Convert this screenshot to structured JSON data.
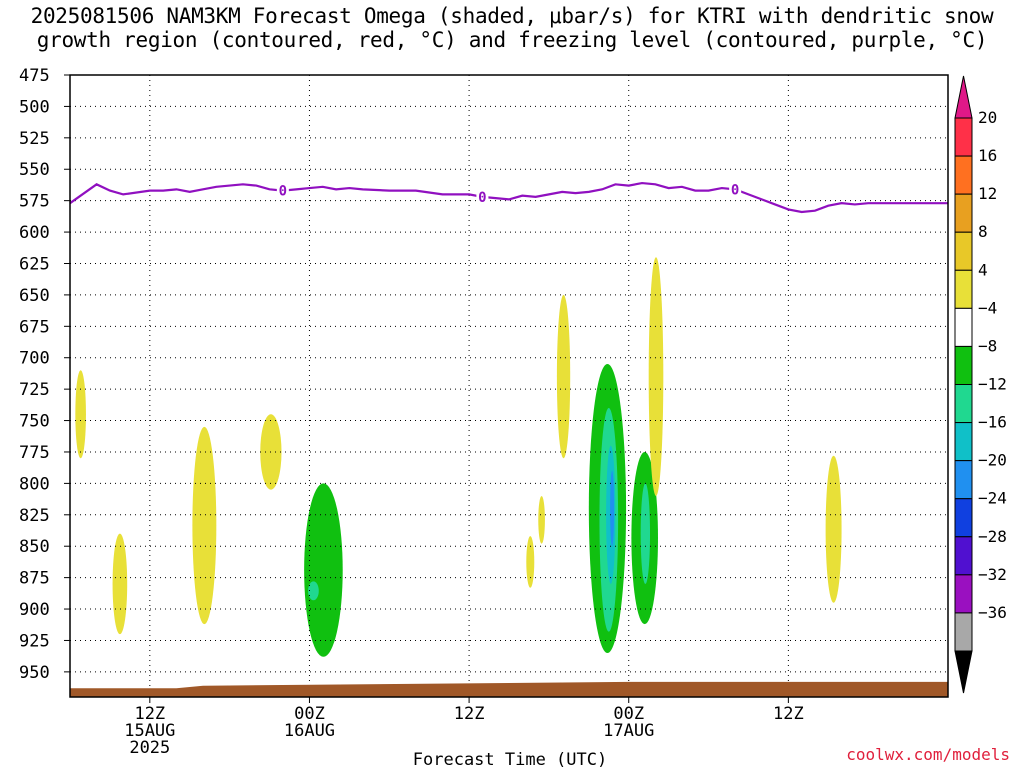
{
  "title": {
    "line1": "2025081506 NAM3KM Forecast Omega (shaded, μbar/s) for KTRI with dendritic snow",
    "line2": "growth region (contoured, red, °C) and freezing level (contoured, purple, °C)"
  },
  "credit": "coolwx.com/models",
  "chart_data": {
    "type": "time-height",
    "title": "2025081506 NAM3KM Forecast Omega (shaded, μbar/s) for KTRI with dendritic snow growth region (contoured, red, °C) and freezing level (contoured, purple, °C)",
    "xlabel": "Forecast Time (UTC)",
    "ylabel": "",
    "xlim": [
      6,
      72
    ],
    "ylim": [
      475,
      970
    ],
    "y_ticks": [
      475,
      500,
      525,
      550,
      575,
      600,
      625,
      650,
      675,
      700,
      725,
      750,
      775,
      800,
      825,
      850,
      875,
      900,
      925,
      950
    ],
    "x_ticks": [
      {
        "x": 12,
        "lines": [
          "12Z",
          "15AUG",
          "2025"
        ]
      },
      {
        "x": 24,
        "lines": [
          "00Z",
          "16AUG"
        ]
      },
      {
        "x": 36,
        "lines": [
          "12Z"
        ]
      },
      {
        "x": 48,
        "lines": [
          "00Z",
          "17AUG"
        ]
      },
      {
        "x": 60,
        "lines": [
          "12Z"
        ]
      }
    ],
    "grid": true,
    "colorbar": {
      "labels": [
        "20",
        "16",
        "12",
        "8",
        "4",
        "−4",
        "−8",
        "−12",
        "−16",
        "−20",
        "−24",
        "−28",
        "−32",
        "−36"
      ],
      "colors": [
        "#ff3048",
        "#ff7020",
        "#e8a020",
        "#e8c828",
        "#e8e038",
        "#ffffff",
        "#10c010",
        "#20d890",
        "#10c0c8",
        "#2090f0",
        "#1040e0",
        "#5010d0",
        "#9a10c0",
        "#a8a8a8"
      ],
      "top_arrow": "#e01888",
      "bottom_arrow": "#000000"
    },
    "freezing_level": {
      "label": "0",
      "color": "#9010c0",
      "x": [
        6,
        8,
        9,
        10,
        12,
        13,
        14,
        15,
        16,
        17,
        18,
        19,
        20,
        21,
        22,
        23,
        24,
        25,
        26,
        27,
        28,
        30,
        32,
        34,
        36,
        37,
        38,
        39,
        40,
        41,
        42,
        43,
        44,
        45,
        46,
        47,
        48,
        49,
        50,
        51,
        52,
        53,
        54,
        55,
        56,
        57,
        58,
        59,
        60,
        61,
        62,
        63,
        64,
        65,
        66,
        67,
        68,
        69,
        70,
        71,
        72
      ],
      "y": [
        577,
        562,
        567,
        570,
        567,
        567,
        566,
        568,
        566,
        564,
        563,
        562,
        563,
        566,
        567,
        566,
        565,
        564,
        566,
        565,
        566,
        567,
        567,
        570,
        570,
        572,
        573,
        574,
        571,
        572,
        570,
        568,
        569,
        568,
        566,
        562,
        563,
        561,
        562,
        565,
        564,
        567,
        567,
        565,
        566,
        570,
        574,
        578,
        582,
        584,
        583,
        579,
        577,
        578,
        577,
        577,
        577,
        577,
        577,
        577,
        577
      ],
      "label_x": [
        22,
        37,
        56
      ]
    },
    "surface": {
      "color": "#a05828",
      "x": [
        6,
        14,
        16,
        48,
        72
      ],
      "y": [
        963,
        963,
        961,
        958,
        958
      ]
    },
    "omega_regions": [
      {
        "level": 4,
        "color": "#e8e038",
        "x": [
          6.4,
          7.2
        ],
        "y": [
          710,
          780
        ]
      },
      {
        "level": 4,
        "color": "#e8e038",
        "x": [
          9.2,
          10.3
        ],
        "y": [
          840,
          920
        ]
      },
      {
        "level": 4,
        "color": "#e8e038",
        "x": [
          15.2,
          17.0
        ],
        "y": [
          755,
          912
        ]
      },
      {
        "level": 4,
        "color": "#e8e038",
        "x": [
          20.3,
          21.9
        ],
        "y": [
          745,
          805
        ]
      },
      {
        "level": -4,
        "color": "#10c010",
        "x": [
          23.6,
          26.5
        ],
        "y": [
          800,
          938
        ]
      },
      {
        "level": -8,
        "color": "#20d890",
        "x": [
          23.9,
          24.7
        ],
        "y": [
          878,
          893
        ]
      },
      {
        "level": 4,
        "color": "#e8e038",
        "x": [
          41.2,
          41.7
        ],
        "y": [
          810,
          848
        ]
      },
      {
        "level": 4,
        "color": "#e8e038",
        "x": [
          40.3,
          40.9
        ],
        "y": [
          842,
          883
        ]
      },
      {
        "level": 4,
        "color": "#e8e038",
        "x": [
          42.6,
          43.6
        ],
        "y": [
          650,
          780
        ]
      },
      {
        "level": -4,
        "color": "#10c010",
        "x": [
          45.0,
          47.8
        ],
        "y": [
          705,
          935
        ]
      },
      {
        "level": -8,
        "color": "#20d890",
        "x": [
          45.8,
          47.2
        ],
        "y": [
          740,
          918
        ]
      },
      {
        "level": -12,
        "color": "#10c0c8",
        "x": [
          46.3,
          47.0
        ],
        "y": [
          770,
          880
        ]
      },
      {
        "level": -16,
        "color": "#2090f0",
        "x": [
          46.6,
          46.9
        ],
        "y": [
          790,
          850
        ]
      },
      {
        "level": -4,
        "color": "#10c010",
        "x": [
          48.2,
          50.2
        ],
        "y": [
          775,
          912
        ]
      },
      {
        "level": -8,
        "color": "#20d890",
        "x": [
          48.9,
          49.6
        ],
        "y": [
          800,
          880
        ]
      },
      {
        "level": 4,
        "color": "#e8e038",
        "x": [
          49.5,
          50.6
        ],
        "y": [
          620,
          810
        ]
      },
      {
        "level": 4,
        "color": "#e8e038",
        "x": [
          62.8,
          64.0
        ],
        "y": [
          778,
          895
        ]
      }
    ]
  }
}
